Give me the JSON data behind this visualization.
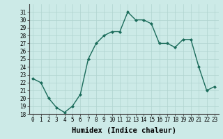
{
  "x": [
    0,
    1,
    2,
    3,
    4,
    5,
    6,
    7,
    8,
    9,
    10,
    11,
    12,
    13,
    14,
    15,
    16,
    17,
    18,
    19,
    20,
    21,
    22,
    23
  ],
  "y": [
    22.5,
    22.0,
    20.0,
    18.8,
    18.2,
    19.0,
    20.5,
    25.0,
    27.0,
    28.0,
    28.5,
    28.5,
    31.0,
    30.0,
    30.0,
    29.5,
    27.0,
    27.0,
    26.5,
    27.5,
    27.5,
    24.0,
    21.0,
    21.5
  ],
  "line_color": "#1a6b5a",
  "marker": "D",
  "marker_size": 2.0,
  "bg_color": "#cceae7",
  "grid_color": "#b0d4d0",
  "xlabel": "Humidex (Indice chaleur)",
  "ylim": [
    18,
    32
  ],
  "xlim": [
    -0.5,
    23.5
  ],
  "yticks": [
    18,
    19,
    20,
    21,
    22,
    23,
    24,
    25,
    26,
    27,
    28,
    29,
    30,
    31
  ],
  "xticks": [
    0,
    1,
    2,
    3,
    4,
    5,
    6,
    7,
    8,
    9,
    10,
    11,
    12,
    13,
    14,
    15,
    16,
    17,
    18,
    19,
    20,
    21,
    22,
    23
  ],
  "tick_fontsize": 5.5,
  "xlabel_fontsize": 7.5,
  "line_width": 1.0
}
